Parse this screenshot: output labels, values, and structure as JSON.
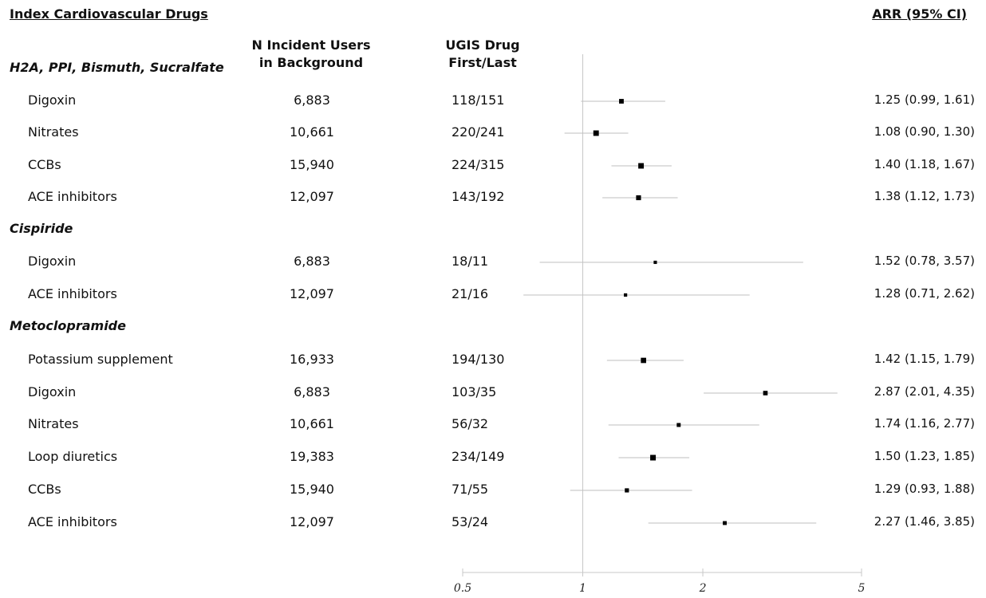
{
  "header": {
    "index_title": "Index Cardiovascular Drugs",
    "col_n": [
      "N Incident Users",
      "in Background"
    ],
    "col_ugis": [
      "UGIS Drug",
      "First/Last"
    ],
    "col_arr": "ARR (95% CI)"
  },
  "groups": [
    {
      "name": "H2A, PPI, Bismuth, Sucralfate"
    },
    {
      "name": "Cispiride"
    },
    {
      "name": "Metoclopramide"
    }
  ],
  "rows": [
    {
      "drug": "Digoxin",
      "n": "6,883",
      "ugis": "118/151",
      "arr_text": "1.25 (0.99, 1.61)"
    },
    {
      "drug": "Nitrates",
      "n": "10,661",
      "ugis": "220/241",
      "arr_text": "1.08 (0.90, 1.30)"
    },
    {
      "drug": "CCBs",
      "n": "15,940",
      "ugis": "224/315",
      "arr_text": "1.40 (1.18, 1.67)"
    },
    {
      "drug": "ACE inhibitors",
      "n": "12,097",
      "ugis": "143/192",
      "arr_text": "1.38 (1.12, 1.73)"
    },
    {
      "drug": "Digoxin",
      "n": "6,883",
      "ugis": "18/11",
      "arr_text": "1.52 (0.78, 3.57)"
    },
    {
      "drug": "ACE inhibitors",
      "n": "12,097",
      "ugis": "21/16",
      "arr_text": "1.28 (0.71, 2.62)"
    },
    {
      "drug": "Potassium supplement",
      "n": "16,933",
      "ugis": "194/130",
      "arr_text": "1.42 (1.15, 1.79)"
    },
    {
      "drug": "Digoxin",
      "n": "6,883",
      "ugis": "103/35",
      "arr_text": "2.87 (2.01, 4.35)"
    },
    {
      "drug": "Nitrates",
      "n": "10,661",
      "ugis": "56/32",
      "arr_text": "1.74 (1.16, 2.77)"
    },
    {
      "drug": "Loop diuretics",
      "n": "19,383",
      "ugis": "234/149",
      "arr_text": "1.50 (1.23, 1.85)"
    },
    {
      "drug": "CCBs",
      "n": "15,940",
      "ugis": "71/55",
      "arr_text": "1.29 (0.93, 1.88)"
    },
    {
      "drug": "ACE inhibitors",
      "n": "12,097",
      "ugis": "53/24",
      "arr_text": "2.27 (1.46, 3.85)"
    }
  ],
  "chart_data": {
    "type": "forest",
    "title": "",
    "xlabel": "",
    "ylabel": "",
    "x_scale": "log",
    "xlim": [
      0.5,
      5
    ],
    "x_ticks": [
      "0.5",
      "1",
      "2",
      "5"
    ],
    "reference_line": 1,
    "grid": false,
    "series": [
      {
        "points": [
          {
            "group": "H2A, PPI, Bismuth, Sucralfate",
            "category": "Digoxin",
            "estimate": 1.25,
            "lower": 0.99,
            "upper": 1.61
          },
          {
            "group": "H2A, PPI, Bismuth, Sucralfate",
            "category": "Nitrates",
            "estimate": 1.08,
            "lower": 0.9,
            "upper": 1.3
          },
          {
            "group": "H2A, PPI, Bismuth, Sucralfate",
            "category": "CCBs",
            "estimate": 1.4,
            "lower": 1.18,
            "upper": 1.67
          },
          {
            "group": "H2A, PPI, Bismuth, Sucralfate",
            "category": "ACE inhibitors",
            "estimate": 1.38,
            "lower": 1.12,
            "upper": 1.73
          },
          {
            "group": "Cispiride",
            "category": "Digoxin",
            "estimate": 1.52,
            "lower": 0.78,
            "upper": 3.57
          },
          {
            "group": "Cispiride",
            "category": "ACE inhibitors",
            "estimate": 1.28,
            "lower": 0.71,
            "upper": 2.62
          },
          {
            "group": "Metoclopramide",
            "category": "Potassium supplement",
            "estimate": 1.42,
            "lower": 1.15,
            "upper": 1.79
          },
          {
            "group": "Metoclopramide",
            "category": "Digoxin",
            "estimate": 2.87,
            "lower": 2.01,
            "upper": 4.35
          },
          {
            "group": "Metoclopramide",
            "category": "Nitrates",
            "estimate": 1.74,
            "lower": 1.16,
            "upper": 2.77
          },
          {
            "group": "Metoclopramide",
            "category": "Loop diuretics",
            "estimate": 1.5,
            "lower": 1.23,
            "upper": 1.85
          },
          {
            "group": "Metoclopramide",
            "category": "CCBs",
            "estimate": 1.29,
            "lower": 0.93,
            "upper": 1.88
          },
          {
            "group": "Metoclopramide",
            "category": "ACE inhibitors",
            "estimate": 2.27,
            "lower": 1.46,
            "upper": 3.85
          }
        ]
      }
    ],
    "marker_weight": [
      {
        "category": "Digoxin",
        "weight": 118
      },
      {
        "category": "Nitrates",
        "weight": 220
      },
      {
        "category": "CCBs",
        "weight": 224
      },
      {
        "category": "ACE inhibitors",
        "weight": 143
      },
      {
        "category": "Digoxin",
        "weight": 18
      },
      {
        "category": "ACE inhibitors",
        "weight": 21
      },
      {
        "category": "Potassium supplement",
        "weight": 194
      },
      {
        "category": "Digoxin",
        "weight": 103
      },
      {
        "category": "Nitrates",
        "weight": 56
      },
      {
        "category": "Loop diuretics",
        "weight": 234
      },
      {
        "category": "CCBs",
        "weight": 71
      },
      {
        "category": "ACE inhibitors",
        "weight": 53
      }
    ],
    "colors": {
      "marker": "#000000",
      "ci_line": "#bfbfbf",
      "axis": "#c8c8c8"
    }
  }
}
